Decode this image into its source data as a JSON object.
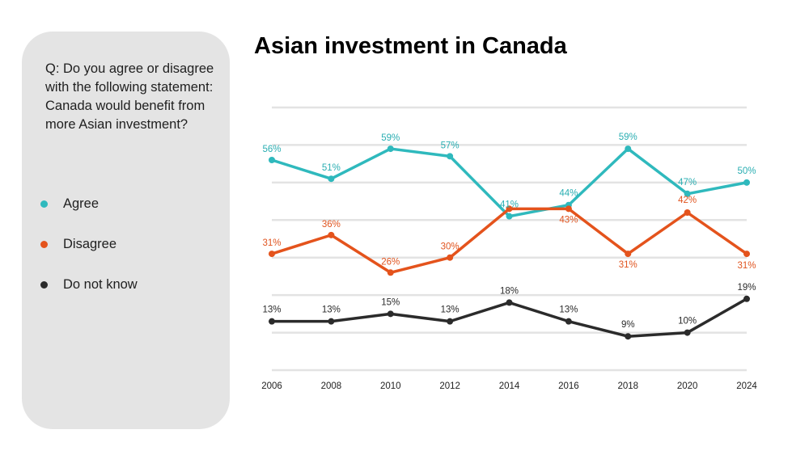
{
  "title": "Asian investment in Canada",
  "question": "Q: Do you agree or disagree with the following statement: Canada would benefit from more Asian investment?",
  "legend": [
    {
      "label": "Agree",
      "color": "#2fb9bd"
    },
    {
      "label": "Disagree",
      "color": "#e4531c"
    },
    {
      "label": "Do not know",
      "color": "#2b2b2b"
    }
  ],
  "chart_data": {
    "type": "line",
    "title": "Asian investment in Canada",
    "xlabel": "",
    "ylabel": "",
    "x": [
      "2006",
      "2008",
      "2010",
      "2012",
      "2014",
      "2016",
      "2018",
      "2020",
      "2024"
    ],
    "ylim": [
      0,
      70
    ],
    "grid": true,
    "legend_placement": "left",
    "series": [
      {
        "name": "Agree",
        "color": "#2fb9bd",
        "label_color": "#2aaeb2",
        "values": [
          56,
          51,
          59,
          57,
          41,
          44,
          59,
          47,
          50
        ],
        "labels": [
          "56%",
          "51%",
          "59%",
          "57%",
          "41%",
          "44%",
          "59%",
          "47%",
          "50%"
        ]
      },
      {
        "name": "Disagree",
        "color": "#e4531c",
        "label_color": "#e0541f",
        "values": [
          31,
          36,
          26,
          30,
          43,
          43,
          31,
          42,
          31
        ],
        "labels": [
          "31%",
          "36%",
          "26%",
          "30%",
          "",
          "43%",
          "31%",
          "42%",
          "31%"
        ]
      },
      {
        "name": "Do not know",
        "color": "#2b2b2b",
        "label_color": "#2b2b2b",
        "values": [
          13,
          13,
          15,
          13,
          18,
          13,
          9,
          10,
          19
        ],
        "labels": [
          "13%",
          "13%",
          "15%",
          "13%",
          "18%",
          "13%",
          "9%",
          "10%",
          "19%"
        ]
      }
    ]
  }
}
